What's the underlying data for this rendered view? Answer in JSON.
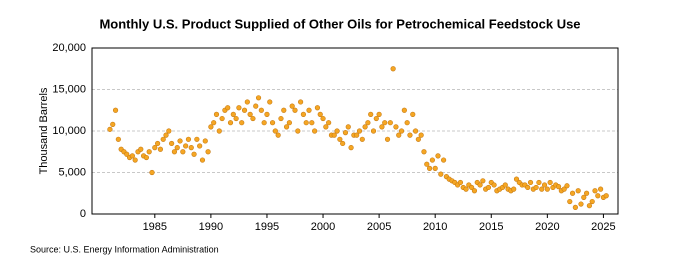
{
  "chart_data": {
    "type": "scatter",
    "title": "Monthly U.S. Product Supplied of Other Oils for Petrochemical Feedstock Use",
    "y_label": "Thousand Barrels",
    "source": "Source: U.S. Energy Information Administration",
    "color": "#f5a623",
    "grid": true,
    "xlim": [
      1979.4,
      2026.3
    ],
    "xticks": [
      1985,
      1990,
      1995,
      2000,
      2005,
      2010,
      2015,
      2020,
      2025
    ],
    "ylim": [
      0,
      20000
    ],
    "yticks": [
      0,
      {
        "value": 5000,
        "label": "5,000"
      },
      {
        "value": 10000,
        "label": "10,000"
      },
      {
        "value": 15000,
        "label": "15,000"
      },
      {
        "value": 20000,
        "label": "20,000"
      }
    ],
    "x": [
      1981,
      1981.25,
      1981.5,
      1981.75,
      1982,
      1982.25,
      1982.5,
      1982.75,
      1983,
      1983.25,
      1983.5,
      1983.75,
      1984,
      1984.25,
      1984.5,
      1984.75,
      1985,
      1985.25,
      1985.5,
      1985.75,
      1986,
      1986.25,
      1986.5,
      1986.75,
      1987,
      1987.25,
      1987.5,
      1987.75,
      1988,
      1988.25,
      1988.5,
      1988.75,
      1989,
      1989.25,
      1989.5,
      1989.75,
      1990,
      1990.25,
      1990.5,
      1990.75,
      1991,
      1991.25,
      1991.5,
      1991.75,
      1992,
      1992.25,
      1992.5,
      1992.75,
      1993,
      1993.25,
      1993.5,
      1993.75,
      1994,
      1994.25,
      1994.5,
      1994.75,
      1995,
      1995.25,
      1995.5,
      1995.75,
      1996,
      1996.25,
      1996.5,
      1996.75,
      1997,
      1997.25,
      1997.5,
      1997.75,
      1998,
      1998.25,
      1998.5,
      1998.75,
      1999,
      1999.25,
      1999.5,
      1999.75,
      2000,
      2000.25,
      2000.5,
      2000.75,
      2001,
      2001.25,
      2001.5,
      2001.75,
      2002,
      2002.25,
      2002.5,
      2002.75,
      2003,
      2003.25,
      2003.5,
      2003.75,
      2004,
      2004.25,
      2004.5,
      2004.75,
      2005,
      2005.25,
      2005.5,
      2005.75,
      2006,
      2006.25,
      2006.5,
      2006.75,
      2007,
      2007.25,
      2007.5,
      2007.75,
      2008,
      2008.25,
      2008.5,
      2008.75,
      2009,
      2009.25,
      2009.5,
      2009.75,
      2010,
      2010.25,
      2010.5,
      2010.75,
      2011,
      2011.25,
      2011.5,
      2011.75,
      2012,
      2012.25,
      2012.5,
      2012.75,
      2013,
      2013.25,
      2013.5,
      2013.75,
      2014,
      2014.25,
      2014.5,
      2014.75,
      2015,
      2015.25,
      2015.5,
      2015.75,
      2016,
      2016.25,
      2016.5,
      2016.75,
      2017,
      2017.25,
      2017.5,
      2017.75,
      2018,
      2018.25,
      2018.5,
      2018.75,
      2019,
      2019.25,
      2019.5,
      2019.75,
      2020,
      2020.25,
      2020.5,
      2020.75,
      2021,
      2021.25,
      2021.5,
      2021.75,
      2022,
      2022.25,
      2022.5,
      2022.75,
      2023,
      2023.25,
      2023.5,
      2023.75,
      2024,
      2024.25,
      2024.5,
      2024.75,
      2025,
      2025.25
    ],
    "values": [
      10200,
      10800,
      12500,
      9000,
      7800,
      7500,
      7200,
      6800,
      7000,
      6500,
      7500,
      7800,
      7000,
      6800,
      7500,
      5000,
      8000,
      8500,
      7800,
      9000,
      9500,
      10000,
      8500,
      7500,
      8000,
      8800,
      7500,
      8200,
      9000,
      8000,
      7200,
      9000,
      8200,
      6500,
      8800,
      7500,
      10500,
      11000,
      12000,
      10000,
      11500,
      12500,
      12800,
      11000,
      12000,
      11500,
      12800,
      11000,
      12500,
      13500,
      12000,
      11500,
      13000,
      14000,
      12500,
      11000,
      12000,
      13500,
      11000,
      10000,
      9500,
      11500,
      12500,
      10500,
      11000,
      13000,
      12500,
      10000,
      13500,
      12000,
      11000,
      12500,
      11000,
      10000,
      12800,
      12000,
      11500,
      10500,
      11000,
      9500,
      9500,
      10000,
      9000,
      8500,
      9800,
      10500,
      8000,
      9500,
      9500,
      10000,
      9000,
      10500,
      11000,
      12000,
      10000,
      11500,
      12000,
      10500,
      11000,
      9000,
      11000,
      17500,
      10500,
      9500,
      10000,
      12500,
      11000,
      9500,
      12000,
      10000,
      9000,
      9500,
      7500,
      6000,
      5500,
      6500,
      5500,
      7000,
      4800,
      6500,
      4500,
      4200,
      4000,
      3800,
      3500,
      3800,
      3200,
      3000,
      3500,
      3200,
      2800,
      3800,
      3500,
      4000,
      3000,
      3200,
      3800,
      3500,
      2800,
      3000,
      3200,
      3500,
      3000,
      2800,
      3000,
      4200,
      3800,
      3500,
      3500,
      3200,
      3800,
      3000,
      3200,
      3800,
      3000,
      3500,
      3000,
      3800,
      3200,
      3500,
      3300,
      2800,
      3000,
      3400,
      1500,
      2500,
      800,
      2800,
      1200,
      2000,
      2500,
      1000,
      1500,
      2800,
      2200,
      3000,
      2000,
      2200
    ]
  }
}
